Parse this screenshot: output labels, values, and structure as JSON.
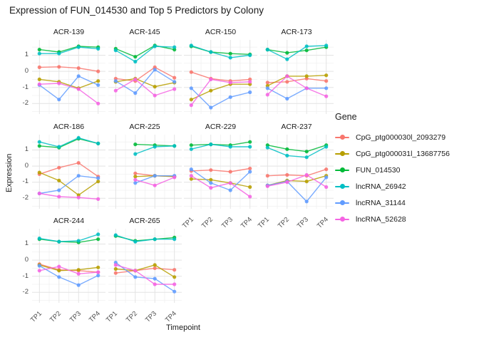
{
  "chart_data": {
    "type": "line",
    "title": "Expression of FUN_014530 and Top 5 Predictors by Colony",
    "xlabel": "Timepoint",
    "ylabel": "Expression",
    "legend_title": "Gene",
    "x": [
      "TP1",
      "TP2",
      "TP3",
      "TP4"
    ],
    "yticks": [
      1,
      0,
      -1,
      -2
    ],
    "ylim": [
      -2.65,
      1.95
    ],
    "grid": "on",
    "legend_position": "right",
    "genes": [
      {
        "name": "CpG_ptg000030l_2093279",
        "color": "#F8766D"
      },
      {
        "name": "CpG_ptg000031l_13687756",
        "color": "#B79F00"
      },
      {
        "name": "FUN_014530",
        "color": "#00BA38"
      },
      {
        "name": "lncRNA_26942",
        "color": "#00BFC4"
      },
      {
        "name": "lncRNA_31144",
        "color": "#619CFF"
      },
      {
        "name": "lncRNA_52628",
        "color": "#F564E3"
      }
    ],
    "facets": [
      {
        "colony": "ACR-139",
        "values": [
          [
            0.25,
            0.28,
            0.2,
            0.0
          ],
          [
            -0.5,
            -0.65,
            -1.05,
            -0.6
          ],
          [
            1.35,
            1.2,
            1.55,
            1.5
          ],
          [
            1.1,
            1.1,
            1.5,
            1.4
          ],
          [
            -0.85,
            -1.75,
            -0.3,
            -0.85
          ],
          [
            -0.8,
            -0.75,
            -1.1,
            -2.0
          ]
        ]
      },
      {
        "colony": "ACR-145",
        "values": [
          [
            -0.45,
            -0.6,
            0.25,
            -0.4
          ],
          [
            -0.65,
            -0.45,
            -0.95,
            -0.7
          ],
          [
            1.4,
            0.9,
            1.6,
            1.35
          ],
          [
            1.3,
            0.6,
            1.55,
            1.5
          ],
          [
            -0.6,
            -1.35,
            0.1,
            -0.65
          ],
          [
            -1.2,
            -0.5,
            -1.5,
            -1.1
          ]
        ]
      },
      {
        "colony": "ACR-150",
        "values": [
          [
            -0.05,
            -0.45,
            -0.6,
            -0.5
          ],
          [
            -1.75,
            -1.2,
            -0.8,
            -0.8
          ],
          [
            1.55,
            1.2,
            1.1,
            1.05
          ],
          [
            1.6,
            1.2,
            0.85,
            1.0
          ],
          [
            -1.05,
            -2.25,
            -1.6,
            -1.3
          ],
          [
            -2.1,
            -0.5,
            -0.7,
            -0.65
          ]
        ]
      },
      {
        "colony": "ACR-173",
        "values": [
          [
            -0.7,
            -0.65,
            -0.45,
            -0.6
          ],
          [
            -0.9,
            -0.3,
            -0.3,
            -0.25
          ],
          [
            1.35,
            1.15,
            1.3,
            1.5
          ],
          [
            1.35,
            0.75,
            1.55,
            1.6
          ],
          [
            -1.05,
            -1.7,
            -1.05,
            -1.05
          ],
          [
            -1.45,
            -0.3,
            -1.05,
            -1.55
          ]
        ]
      },
      {
        "colony": "ACR-186",
        "values": [
          [
            -0.5,
            -0.1,
            0.2,
            -0.65
          ],
          [
            -0.4,
            -0.9,
            -1.8,
            -0.95
          ],
          [
            1.25,
            1.15,
            1.7,
            1.4
          ],
          [
            1.5,
            1.2,
            1.75,
            1.4
          ],
          [
            -1.7,
            -1.5,
            -0.6,
            -0.75
          ],
          [
            -1.7,
            -1.9,
            -1.95,
            -2.05
          ]
        ]
      },
      {
        "colony": "ACR-225",
        "values": [
          [
            null,
            -0.45,
            -0.6,
            -0.65
          ],
          [
            null,
            -0.65,
            -0.6,
            -0.65
          ],
          [
            null,
            1.35,
            1.3,
            1.25
          ],
          [
            null,
            0.75,
            1.2,
            1.25
          ],
          [
            null,
            -1.05,
            -0.6,
            -0.6
          ],
          [
            null,
            -0.85,
            -1.2,
            -0.7
          ]
        ]
      },
      {
        "colony": "ACR-229",
        "values": [
          [
            -0.3,
            -0.25,
            -0.35,
            -0.15
          ],
          [
            -0.8,
            -0.85,
            -1.05,
            -1.3
          ],
          [
            1.3,
            1.35,
            1.3,
            1.5
          ],
          [
            1.05,
            1.35,
            1.2,
            1.2
          ],
          [
            -0.2,
            -1.05,
            -1.5,
            -0.35
          ],
          [
            -0.6,
            -1.35,
            -1.05,
            -1.9
          ]
        ]
      },
      {
        "colony": "ACR-237",
        "values": [
          [
            -0.6,
            -0.55,
            -0.6,
            -0.2
          ],
          [
            -1.2,
            -0.9,
            -0.95,
            -0.6
          ],
          [
            1.3,
            1.05,
            0.9,
            1.3
          ],
          [
            1.15,
            0.65,
            0.55,
            1.2
          ],
          [
            -1.2,
            -0.95,
            -2.2,
            -0.7
          ],
          [
            -1.25,
            -1.0,
            -0.55,
            -1.3
          ]
        ]
      },
      {
        "colony": "ACR-244",
        "values": [
          [
            -0.25,
            -0.6,
            -0.65,
            -0.75
          ],
          [
            -0.3,
            -0.65,
            -0.6,
            -0.45
          ],
          [
            1.3,
            1.15,
            1.1,
            1.3
          ],
          [
            1.35,
            1.15,
            1.2,
            1.6
          ],
          [
            -0.35,
            -1.05,
            -1.55,
            -0.95
          ],
          [
            -0.65,
            -0.4,
            -0.85,
            -0.75
          ]
        ]
      },
      {
        "colony": "ACR-265",
        "values": [
          [
            -0.8,
            -0.65,
            -0.5,
            -0.6
          ],
          [
            -0.55,
            -0.65,
            -0.3,
            -1.05
          ],
          [
            1.5,
            1.2,
            1.3,
            1.4
          ],
          [
            1.55,
            1.15,
            1.3,
            1.3
          ],
          [
            -0.15,
            -1.05,
            -1.15,
            -1.95
          ],
          [
            -0.3,
            -0.65,
            -1.5,
            -1.5
          ]
        ]
      }
    ]
  }
}
